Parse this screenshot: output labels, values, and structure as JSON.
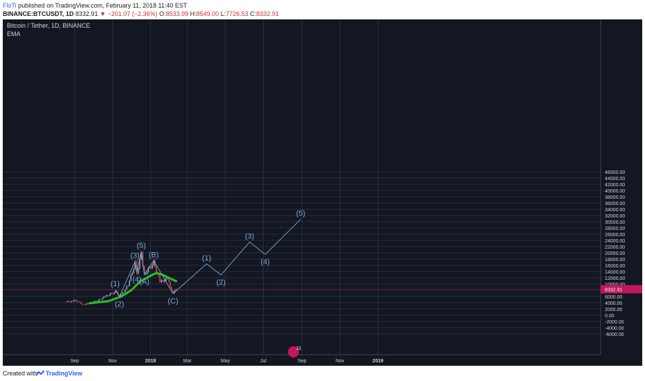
{
  "header": {
    "author": "FloTi",
    "published_text": " published on TradingView.com, February 11, 2018 11:40 EST",
    "symbol": "BINANCE:BTCUSDT, 1D",
    "last": "8332.91",
    "change": "▼ −201.07 (−2.36%)",
    "open_label": "O:",
    "open": "8533.99",
    "high_label": "H:",
    "high": "8549.00",
    "low_label": "L:",
    "low": "7726.53",
    "close_label": "C:",
    "close": "8332.91"
  },
  "legend": {
    "title": "Bitcoin / Tether, 1D, BINANCE",
    "indicator": "EMA"
  },
  "footer": {
    "created_with": "Created with",
    "brand": "TradingView"
  },
  "colors": {
    "background": "#131722",
    "grid": "#2a2e39",
    "ema": "#22c522",
    "wave": "#7fa8d6",
    "price_line": "#c2185b",
    "up": "#9fb5cc",
    "down": "#e05050"
  },
  "chart_data": {
    "type": "candlestick",
    "y_ticks": [
      "46000.00",
      "44000.00",
      "42000.00",
      "40000.00",
      "38000.00",
      "36000.00",
      "34000.00",
      "32000.00",
      "30000.00",
      "28000.00",
      "26000.00",
      "24000.00",
      "22000.00",
      "20000.00",
      "18000.00",
      "16000.00",
      "14000.00",
      "12000.00",
      "10000.00",
      "8000.00",
      "6000.00",
      "4000.00",
      "2000.00",
      "0.00",
      "-2000.00",
      "-4000.00",
      "-6000.00"
    ],
    "x_ticks": [
      "Sep",
      "Nov",
      "2018",
      "Mar",
      "May",
      "Jul",
      "Sep",
      "Nov",
      "2019"
    ],
    "last_price": 8332.91,
    "price_series": [
      {
        "x": "2017-08-17",
        "y": 4300
      },
      {
        "x": "2017-08-27",
        "y": 4400
      },
      {
        "x": "2017-09-02",
        "y": 4800
      },
      {
        "x": "2017-09-15",
        "y": 3300
      },
      {
        "x": "2017-09-25",
        "y": 3900
      },
      {
        "x": "2017-10-10",
        "y": 4800
      },
      {
        "x": "2017-10-20",
        "y": 6000
      },
      {
        "x": "2017-11-06",
        "y": 7500
      },
      {
        "x": "2017-11-12",
        "y": 5900
      },
      {
        "x": "2017-11-26",
        "y": 9500
      },
      {
        "x": "2017-12-07",
        "y": 16800
      },
      {
        "x": "2017-12-10",
        "y": 13500
      },
      {
        "x": "2017-12-17",
        "y": 19500
      },
      {
        "x": "2017-12-22",
        "y": 13100
      },
      {
        "x": "2018-01-06",
        "y": 16800
      },
      {
        "x": "2018-01-16",
        "y": 10900
      },
      {
        "x": "2018-01-28",
        "y": 11500
      },
      {
        "x": "2018-02-06",
        "y": 6900
      },
      {
        "x": "2018-02-11",
        "y": 8333
      }
    ],
    "ema_series": [
      {
        "x": "2017-09-25",
        "y": 3800
      },
      {
        "x": "2017-10-25",
        "y": 4500
      },
      {
        "x": "2017-11-15",
        "y": 6000
      },
      {
        "x": "2017-12-01",
        "y": 8000
      },
      {
        "x": "2017-12-15",
        "y": 10800
      },
      {
        "x": "2018-01-01",
        "y": 12700
      },
      {
        "x": "2018-01-10",
        "y": 13500
      },
      {
        "x": "2018-01-20",
        "y": 13000
      },
      {
        "x": "2018-01-30",
        "y": 12000
      },
      {
        "x": "2018-02-11",
        "y": 10900
      }
    ],
    "wave_path": [
      {
        "x": "2017-11-05",
        "y": 8200
      },
      {
        "x": "2017-11-12",
        "y": 5900
      },
      {
        "x": "2017-12-07",
        "y": 17200
      },
      {
        "x": "2017-12-10",
        "y": 13800
      },
      {
        "x": "2017-12-17",
        "y": 20500
      },
      {
        "x": "2017-12-22",
        "y": 13100
      },
      {
        "x": "2018-01-06",
        "y": 17500
      },
      {
        "x": "2018-02-06",
        "y": 6900
      },
      {
        "x": "2018-04-01",
        "y": 16500
      },
      {
        "x": "2018-04-24",
        "y": 12900
      },
      {
        "x": "2018-06-09",
        "y": 23500
      },
      {
        "x": "2018-07-04",
        "y": 19500
      },
      {
        "x": "2018-08-30",
        "y": 30800
      }
    ],
    "wave_labels": [
      "(1)",
      "(2)",
      "(3)",
      "(4)",
      "(5)",
      "(A)",
      "(B)",
      "(C)",
      "(1)",
      "(2)",
      "(3)",
      "(4)",
      "(5)"
    ],
    "news_badge": "11"
  }
}
